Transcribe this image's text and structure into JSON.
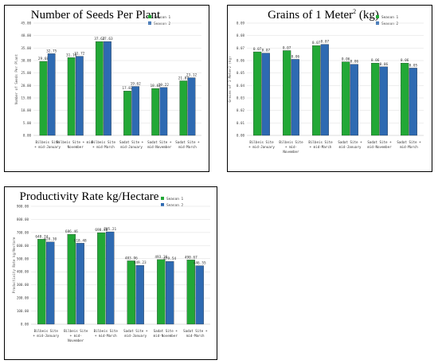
{
  "chart_data": [
    {
      "type": "bar",
      "title": "Number of Seeds Per Plant",
      "ylabel": "Number of Seeds Per Plant",
      "ylim": [
        0,
        45
      ],
      "ytick_step": 5,
      "ytick_decimals": 2,
      "value_decimals": 2,
      "categories": [
        [
          "Bilbeis Site",
          "+ mid-January"
        ],
        [
          "Bilbeis Site + mid-",
          "November"
        ],
        [
          "Bilbeis Site",
          "+ mid-March"
        ],
        [
          "Sadat Site +",
          "mid-January"
        ],
        [
          "Sadat Site +",
          "mid-November"
        ],
        [
          "Sadat Site +",
          "mid-March"
        ]
      ],
      "series": [
        {
          "name": "Season 1",
          "values": [
            29.68,
            31.18,
            37.62,
            17.82,
            18.82,
            21.87
          ]
        },
        {
          "name": "Season 2",
          "values": [
            32.75,
            31.72,
            37.63,
            19.62,
            19.22,
            23.12
          ]
        }
      ],
      "legend": "top-right"
    },
    {
      "type": "bar",
      "title": "Grains of 1 Meter",
      "title_sup": "2",
      "title_suffix": " (kg)",
      "ylabel": "Grains of 1 Meter2 (kg)",
      "ylim": [
        0,
        0.09
      ],
      "ytick_step": 0.01,
      "ytick_decimals": 2,
      "value_decimals": 2,
      "categories": [
        [
          "Bilbeis Site",
          "+ mid-January"
        ],
        [
          "Bilbeis Site",
          "+ mid-",
          "November"
        ],
        [
          "Bilbeis Site",
          "+ mid-March"
        ],
        [
          "Sadat Site +",
          "mid-January"
        ],
        [
          "Sadat Site +",
          "mid-November"
        ],
        [
          "Sadat Site +",
          "mid-March"
        ]
      ],
      "series": [
        {
          "name": "Season 1",
          "values": [
            0.067,
            0.068,
            0.072,
            0.059,
            0.058,
            0.058
          ]
        },
        {
          "name": "Season 2",
          "values": [
            0.066,
            0.061,
            0.073,
            0.057,
            0.055,
            0.054
          ]
        }
      ],
      "legend": "top-right"
    },
    {
      "type": "bar",
      "title": "Productivity Rate kg/Hectare",
      "ylabel": "Productivity Rate kg/Hectare",
      "ylim": [
        0,
        900
      ],
      "ytick_step": 100,
      "ytick_decimals": 2,
      "value_decimals": 2,
      "categories": [
        [
          "Bilbeis Site",
          "+ mid-January"
        ],
        [
          "Bilbeis Site",
          "+ mid-",
          "November"
        ],
        [
          "Bilbeis Site",
          "+ mid-March"
        ],
        [
          "Sadat Site +",
          "mid-January"
        ],
        [
          "Sadat Site +",
          "mid-November"
        ],
        [
          "Sadat Site +",
          "mid-March"
        ]
      ],
      "series": [
        {
          "name": "Season 1",
          "values": [
            648.74,
            686.46,
            698.86,
            483.96,
            493.36,
            490.67
          ]
        },
        {
          "name": "Season 2",
          "values": [
            628.3,
            618.48,
            705.21,
            449.23,
            479.54,
            446.55
          ]
        }
      ],
      "legend": "top-right"
    }
  ],
  "colors": {
    "season1": "#22a836",
    "season2": "#2e6ab2"
  }
}
